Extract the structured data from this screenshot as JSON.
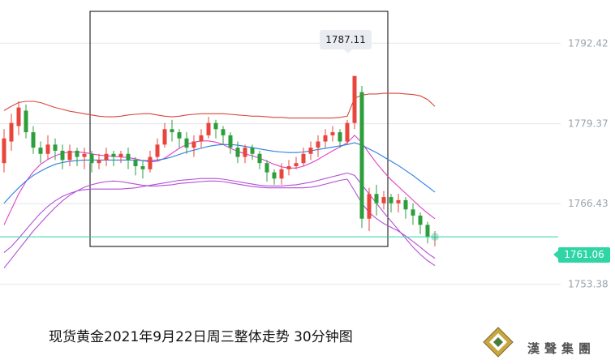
{
  "chart_data": {
    "type": "candlestick",
    "title": "现货黄金2021年9月22日周三整体走势 30分钟图",
    "y_ticks": [
      "1792.42",
      "1779.37",
      "1766.43",
      "1753.38"
    ],
    "y_tick_values": [
      1792.42,
      1779.37,
      1766.43,
      1753.38
    ],
    "ylim": [
      1749.0,
      1796.0
    ],
    "last_price": "1761.06",
    "last_price_value": 1761.06,
    "high_label": "1787.11",
    "high_value": 1787.11,
    "grid": "horizontal",
    "colors": {
      "up": "#e8453c",
      "down": "#2e9e3c",
      "bb_upper": "#d9473d",
      "bb_lower": "#b24fd6",
      "ma_pink": "#e040c8",
      "ma_blue": "#2a7de1",
      "price_line": "#2fd5a6",
      "box": "#000000"
    },
    "candles": [
      [
        1773.0,
        1777.0,
        1771.5,
        1778.5
      ],
      [
        1776.5,
        1779.5,
        1775.0,
        1781.0
      ],
      [
        1779.0,
        1782.0,
        1777.5,
        1783.0
      ],
      [
        1781.5,
        1778.0,
        1777.0,
        1782.5
      ],
      [
        1778.0,
        1775.5,
        1774.5,
        1779.0
      ],
      [
        1775.5,
        1774.5,
        1773.0,
        1776.5
      ],
      [
        1774.5,
        1776.0,
        1773.5,
        1777.5
      ],
      [
        1776.0,
        1775.0,
        1773.5,
        1777.0
      ],
      [
        1775.0,
        1773.5,
        1772.0,
        1776.0
      ],
      [
        1773.5,
        1775.0,
        1772.5,
        1776.0
      ],
      [
        1775.0,
        1774.0,
        1772.5,
        1775.5
      ],
      [
        1774.0,
        1774.5,
        1772.0,
        1775.5
      ],
      [
        1774.5,
        1773.0,
        1771.5,
        1775.0
      ],
      [
        1773.0,
        1773.5,
        1772.0,
        1774.5
      ],
      [
        1773.5,
        1774.5,
        1772.5,
        1775.5
      ],
      [
        1774.5,
        1774.0,
        1772.5,
        1775.0
      ],
      [
        1774.0,
        1774.5,
        1773.0,
        1775.0
      ],
      [
        1774.5,
        1773.5,
        1772.0,
        1775.5
      ],
      [
        1773.5,
        1772.5,
        1771.0,
        1774.0
      ],
      [
        1772.5,
        1772.0,
        1770.5,
        1773.5
      ],
      [
        1772.0,
        1774.0,
        1771.5,
        1775.0
      ],
      [
        1774.0,
        1776.0,
        1773.5,
        1777.0
      ],
      [
        1776.0,
        1778.5,
        1775.5,
        1779.5
      ],
      [
        1778.5,
        1778.0,
        1776.5,
        1780.0
      ],
      [
        1778.0,
        1777.0,
        1775.5,
        1778.5
      ],
      [
        1777.0,
        1775.5,
        1774.5,
        1778.0
      ],
      [
        1775.5,
        1776.5,
        1774.0,
        1777.5
      ],
      [
        1776.5,
        1777.5,
        1775.5,
        1778.5
      ],
      [
        1777.5,
        1779.5,
        1777.0,
        1780.5
      ],
      [
        1779.5,
        1778.5,
        1777.0,
        1780.0
      ],
      [
        1778.5,
        1777.5,
        1776.0,
        1779.0
      ],
      [
        1777.5,
        1775.5,
        1774.5,
        1778.0
      ],
      [
        1775.5,
        1774.0,
        1773.0,
        1776.5
      ],
      [
        1774.0,
        1775.5,
        1773.0,
        1776.0
      ],
      [
        1775.5,
        1774.5,
        1773.5,
        1776.0
      ],
      [
        1774.5,
        1773.0,
        1772.0,
        1775.0
      ],
      [
        1773.0,
        1771.5,
        1770.0,
        1773.5
      ],
      [
        1771.5,
        1770.5,
        1769.5,
        1772.0
      ],
      [
        1770.5,
        1772.0,
        1769.5,
        1773.0
      ],
      [
        1772.0,
        1772.5,
        1771.0,
        1773.5
      ],
      [
        1772.5,
        1773.0,
        1772.0,
        1774.0
      ],
      [
        1773.0,
        1774.5,
        1772.5,
        1775.5
      ],
      [
        1774.5,
        1775.5,
        1773.5,
        1776.5
      ],
      [
        1775.5,
        1776.5,
        1774.0,
        1777.5
      ],
      [
        1776.5,
        1777.5,
        1775.5,
        1778.5
      ],
      [
        1777.5,
        1778.0,
        1776.5,
        1779.0
      ],
      [
        1778.0,
        1776.5,
        1775.5,
        1778.5
      ],
      [
        1776.5,
        1779.5,
        1776.0,
        1780.0
      ],
      [
        1779.5,
        1787.11,
        1778.5,
        1787.11
      ],
      [
        1784.5,
        1764.0,
        1762.5,
        1785.5
      ],
      [
        1764.0,
        1768.0,
        1762.0,
        1769.0
      ],
      [
        1768.0,
        1766.5,
        1764.5,
        1769.5
      ],
      [
        1766.5,
        1767.5,
        1765.5,
        1768.5
      ],
      [
        1767.5,
        1766.5,
        1765.0,
        1768.0
      ],
      [
        1766.5,
        1767.0,
        1765.0,
        1768.0
      ],
      [
        1767.0,
        1765.5,
        1764.0,
        1767.5
      ],
      [
        1765.5,
        1764.5,
        1763.0,
        1766.5
      ],
      [
        1764.5,
        1763.0,
        1761.5,
        1765.0
      ],
      [
        1763.0,
        1761.0,
        1760.0,
        1763.5
      ],
      [
        1761.0,
        1761.06,
        1759.5,
        1762.0
      ]
    ],
    "bb_upper": [
      1781.5,
      1782.2,
      1782.8,
      1783.0,
      1783.0,
      1782.8,
      1782.4,
      1782.0,
      1781.7,
      1781.4,
      1781.2,
      1781.0,
      1780.8,
      1780.6,
      1780.5,
      1780.5,
      1780.6,
      1780.8,
      1780.9,
      1781.0,
      1781.0,
      1780.8,
      1780.6,
      1780.5,
      1780.6,
      1780.8,
      1780.9,
      1781.0,
      1781.0,
      1781.0,
      1781.0,
      1780.9,
      1780.8,
      1780.7,
      1780.6,
      1780.6,
      1780.5,
      1780.4,
      1780.4,
      1780.3,
      1780.3,
      1780.3,
      1780.3,
      1780.3,
      1780.3,
      1780.3,
      1780.4,
      1780.6,
      1783.5,
      1784.0,
      1784.2,
      1784.2,
      1784.3,
      1784.3,
      1784.3,
      1784.2,
      1784.1,
      1783.9,
      1783.3,
      1782.2
    ],
    "bb_lower": [
      1756.0,
      1757.5,
      1759.0,
      1760.5,
      1762.0,
      1763.3,
      1764.6,
      1765.8,
      1766.9,
      1767.8,
      1768.5,
      1769.1,
      1769.5,
      1769.8,
      1770.0,
      1770.1,
      1770.0,
      1769.8,
      1769.6,
      1769.4,
      1769.3,
      1769.3,
      1769.4,
      1769.5,
      1769.7,
      1769.8,
      1769.9,
      1770.0,
      1770.1,
      1770.1,
      1770.0,
      1769.8,
      1769.6,
      1769.4,
      1769.2,
      1769.1,
      1769.0,
      1769.0,
      1769.0,
      1769.0,
      1769.0,
      1769.0,
      1769.1,
      1769.3,
      1769.6,
      1769.9,
      1770.2,
      1770.4,
      1768.5,
      1766.5,
      1765.0,
      1764.0,
      1763.2,
      1762.6,
      1762.0,
      1761.2,
      1760.3,
      1759.4,
      1758.4,
      1757.6
    ],
    "ma_pink": [
      1763.0,
      1765.5,
      1768.0,
      1770.0,
      1771.6,
      1772.8,
      1773.6,
      1774.2,
      1774.6,
      1774.8,
      1774.8,
      1774.7,
      1774.5,
      1774.3,
      1774.2,
      1774.1,
      1774.0,
      1773.9,
      1773.7,
      1773.4,
      1773.2,
      1773.3,
      1773.8,
      1774.6,
      1775.4,
      1776.0,
      1776.4,
      1776.6,
      1776.6,
      1776.4,
      1776.0,
      1775.4,
      1774.9,
      1774.5,
      1774.2,
      1773.8,
      1773.3,
      1772.8,
      1772.4,
      1772.2,
      1772.2,
      1772.5,
      1773.0,
      1773.6,
      1774.3,
      1775.0,
      1775.6,
      1776.3,
      1777.5,
      1776.3,
      1774.6,
      1773.0,
      1771.6,
      1770.3,
      1769.2,
      1768.1,
      1767.0,
      1765.9,
      1764.9,
      1764.0
    ],
    "ma_blue": [
      1766.5,
      1767.8,
      1769.0,
      1770.1,
      1771.0,
      1771.7,
      1772.3,
      1772.8,
      1773.1,
      1773.3,
      1773.4,
      1773.5,
      1773.5,
      1773.5,
      1773.5,
      1773.5,
      1773.5,
      1773.5,
      1773.5,
      1773.4,
      1773.4,
      1773.5,
      1773.7,
      1774.0,
      1774.4,
      1774.8,
      1775.1,
      1775.4,
      1775.7,
      1775.9,
      1776.0,
      1776.0,
      1775.9,
      1775.7,
      1775.5,
      1775.3,
      1775.1,
      1774.9,
      1774.8,
      1774.7,
      1774.7,
      1774.8,
      1775.0,
      1775.2,
      1775.4,
      1775.6,
      1775.8,
      1776.0,
      1776.3,
      1775.9,
      1775.3,
      1774.7,
      1774.0,
      1773.3,
      1772.6,
      1771.8,
      1771.0,
      1770.1,
      1769.2,
      1768.3
    ],
    "purple": [
      1758.5,
      1759.5,
      1760.8,
      1762.2,
      1763.6,
      1764.9,
      1766.0,
      1766.9,
      1767.6,
      1768.1,
      1768.5,
      1768.7,
      1768.8,
      1768.8,
      1768.8,
      1768.8,
      1768.8,
      1768.9,
      1769.0,
      1769.2,
      1769.4,
      1769.6,
      1769.8,
      1770.0,
      1770.2,
      1770.3,
      1770.4,
      1770.5,
      1770.5,
      1770.5,
      1770.4,
      1770.2,
      1770.0,
      1769.8,
      1769.6,
      1769.4,
      1769.3,
      1769.3,
      1769.3,
      1769.4,
      1769.5,
      1769.7,
      1769.9,
      1770.2,
      1770.5,
      1770.8,
      1771.1,
      1771.4,
      1771.0,
      1769.5,
      1768.0,
      1766.5,
      1765.0,
      1763.6,
      1762.2,
      1760.8,
      1759.4,
      1758.2,
      1757.2,
      1756.4
    ]
  },
  "logo": {
    "text": "漢聲集團"
  }
}
